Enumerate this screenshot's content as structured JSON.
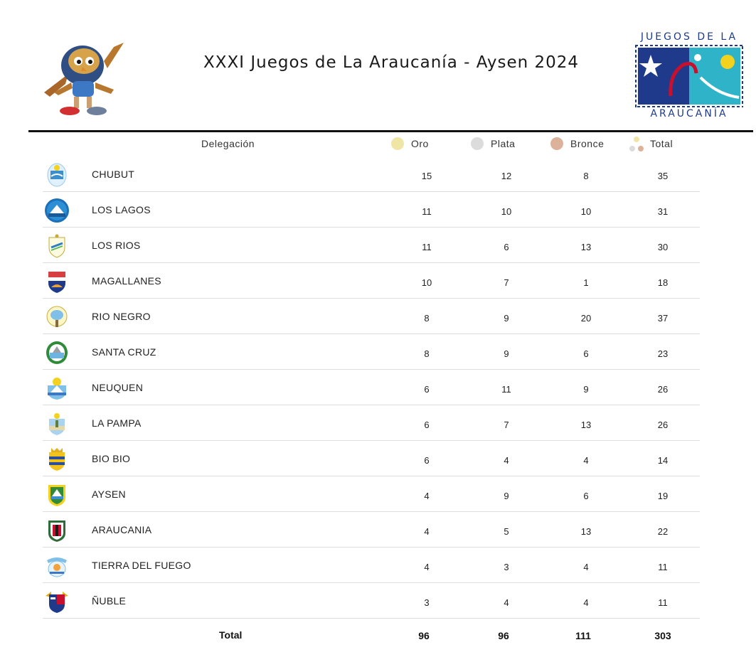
{
  "header": {
    "title": "XXXI Juegos de La Araucanía - Aysen 2024",
    "logo_top": "JUEGOS DE LA",
    "logo_bottom": "ARAUCANÍA"
  },
  "table": {
    "columns": {
      "delegation": "Delegación",
      "gold": "Oro",
      "silver": "Plata",
      "bronze": "Bronce",
      "total": "Total"
    },
    "rows": [
      {
        "name": "CHUBUT",
        "gold": "15",
        "silver": "12",
        "bronze": "8",
        "total": "35"
      },
      {
        "name": "LOS LAGOS",
        "gold": "11",
        "silver": "10",
        "bronze": "10",
        "total": "31"
      },
      {
        "name": "LOS RIOS",
        "gold": "11",
        "silver": "6",
        "bronze": "13",
        "total": "30"
      },
      {
        "name": "MAGALLANES",
        "gold": "10",
        "silver": "7",
        "bronze": "1",
        "total": "18"
      },
      {
        "name": "RIO NEGRO",
        "gold": "8",
        "silver": "9",
        "bronze": "20",
        "total": "37"
      },
      {
        "name": "SANTA CRUZ",
        "gold": "8",
        "silver": "9",
        "bronze": "6",
        "total": "23"
      },
      {
        "name": "NEUQUEN",
        "gold": "6",
        "silver": "11",
        "bronze": "9",
        "total": "26"
      },
      {
        "name": "LA PAMPA",
        "gold": "6",
        "silver": "7",
        "bronze": "13",
        "total": "26"
      },
      {
        "name": "BIO BIO",
        "gold": "6",
        "silver": "4",
        "bronze": "4",
        "total": "14"
      },
      {
        "name": "AYSEN",
        "gold": "4",
        "silver": "9",
        "bronze": "6",
        "total": "19"
      },
      {
        "name": "ARAUCANIA",
        "gold": "4",
        "silver": "5",
        "bronze": "13",
        "total": "22"
      },
      {
        "name": "TIERRA DEL FUEGO",
        "gold": "4",
        "silver": "3",
        "bronze": "4",
        "total": "11"
      },
      {
        "name": "ÑUBLE",
        "gold": "3",
        "silver": "4",
        "bronze": "4",
        "total": "11"
      }
    ],
    "totals": {
      "label": "Total",
      "gold": "96",
      "silver": "96",
      "bronze": "111",
      "total": "303"
    }
  },
  "colors": {
    "gold": "#efe6a6",
    "silver": "#d9d9d9",
    "bronze": "#dcb39a",
    "logo_blue": "#1f3a8a",
    "logo_red": "#c8102e",
    "logo_cyan": "#2fb3c8"
  },
  "icons": {
    "mascot": "mascot-bird-icon",
    "games_logo": "juegos-araucania-logo",
    "delegation_crest": "province-crest-icon"
  }
}
